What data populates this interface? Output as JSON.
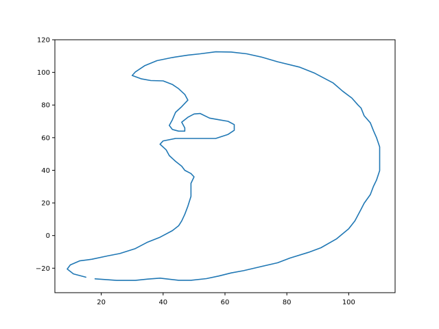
{
  "chart_data": {
    "type": "line",
    "title": "",
    "xlabel": "",
    "ylabel": "",
    "xlim": [
      5,
      115
    ],
    "ylim": [
      -35,
      120
    ],
    "xticks": [
      20,
      40,
      60,
      80,
      100
    ],
    "yticks": [
      -20,
      0,
      20,
      40,
      60,
      80,
      100,
      120
    ],
    "grid": false,
    "legend": "none",
    "series": [
      {
        "color": "#1f77b4",
        "segments": [
          [
            [
              18,
              -26.5
            ],
            [
              25,
              -27.5
            ],
            [
              31,
              -27.5
            ],
            [
              35,
              -26.7
            ],
            [
              39,
              -26.1
            ],
            [
              45,
              -27.4
            ],
            [
              49,
              -27.4
            ],
            [
              54,
              -26.4
            ],
            [
              58,
              -24.8
            ],
            [
              62,
              -22.9
            ],
            [
              66,
              -21.5
            ],
            [
              71,
              -19.3
            ],
            [
              77,
              -16.7
            ],
            [
              81,
              -13.8
            ],
            [
              87,
              -10.3
            ],
            [
              91,
              -7.5
            ],
            [
              96,
              -2.1
            ],
            [
              100,
              4.2
            ],
            [
              102,
              9.0
            ],
            [
              104,
              16.1
            ],
            [
              105,
              19.8
            ],
            [
              107,
              25.1
            ],
            [
              108,
              30.1
            ],
            [
              109,
              34.0
            ],
            [
              110,
              39.8
            ],
            [
              110,
              44.6
            ],
            [
              110,
              54.3
            ],
            [
              109,
              60.0
            ],
            [
              108,
              64.3
            ],
            [
              107,
              69.1
            ],
            [
              105,
              73.4
            ],
            [
              104,
              78.1
            ],
            [
              103,
              80.0
            ],
            [
              101,
              84.3
            ],
            [
              98,
              88.6
            ],
            [
              95,
              93.5
            ],
            [
              89,
              99.5
            ],
            [
              84,
              103.3
            ],
            [
              77,
              106.5
            ],
            [
              72,
              109.3
            ],
            [
              67,
              111.4
            ],
            [
              62,
              112.5
            ],
            [
              57,
              112.6
            ],
            [
              52,
              111.4
            ],
            [
              48,
              110.6
            ],
            [
              43,
              109.1
            ],
            [
              38,
              107.2
            ],
            [
              34,
              104.1
            ],
            [
              31,
              100.2
            ],
            [
              30,
              98.1
            ],
            [
              33,
              96.0
            ],
            [
              36,
              95.0
            ],
            [
              40,
              94.8
            ],
            [
              43,
              92.6
            ],
            [
              45,
              90.0
            ],
            [
              47,
              86.5
            ],
            [
              48,
              83.0
            ],
            [
              46,
              79.0
            ],
            [
              44,
              75.5
            ],
            [
              43,
              71.0
            ],
            [
              42,
              67.5
            ],
            [
              43,
              65.0
            ],
            [
              45,
              64.0
            ],
            [
              47,
              64.0
            ],
            [
              47,
              66.0
            ],
            [
              46,
              69.5
            ],
            [
              48,
              72.5
            ],
            [
              50,
              74.5
            ],
            [
              52,
              74.8
            ],
            [
              55,
              72.0
            ],
            [
              58,
              71.0
            ],
            [
              61,
              70.0
            ],
            [
              63,
              68.0
            ],
            [
              63,
              64.5
            ],
            [
              61,
              62.0
            ],
            [
              57,
              59.5
            ],
            [
              50,
              59.5
            ],
            [
              44,
              59.5
            ],
            [
              40,
              58.0
            ],
            [
              39,
              56.0
            ],
            [
              41,
              52.5
            ],
            [
              42,
              49.0
            ],
            [
              44,
              45.5
            ],
            [
              46,
              42.5
            ],
            [
              47,
              40.0
            ],
            [
              49,
              38.0
            ],
            [
              50,
              36.0
            ],
            [
              49,
              32.0
            ],
            [
              49,
              28.0
            ],
            [
              49,
              24.0
            ],
            [
              48,
              18.0
            ],
            [
              47,
              13.0
            ],
            [
              46,
              9.0
            ],
            [
              45,
              6.0
            ],
            [
              43,
              3.0
            ],
            [
              39,
              -1.0
            ],
            [
              35,
              -4.0
            ],
            [
              31,
              -8.0
            ],
            [
              26,
              -11.0
            ],
            [
              22,
              -12.5
            ],
            [
              17,
              -14.5
            ],
            [
              13,
              -15.5
            ],
            [
              10,
              -18.0
            ],
            [
              9,
              -20.5
            ],
            [
              11,
              -23.5
            ],
            [
              15,
              -25.5
            ]
          ]
        ]
      }
    ]
  }
}
